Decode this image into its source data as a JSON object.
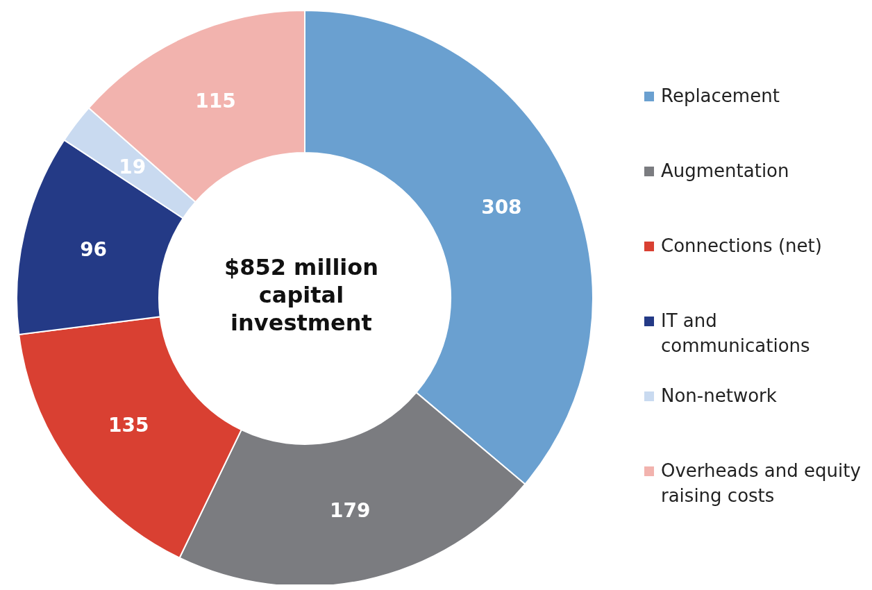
{
  "chart_data": {
    "type": "donut",
    "categories": [
      "Replacement",
      "Augmentation",
      "Connections (net)",
      "IT and communications",
      "Non-network",
      "Overheads and equity raising costs"
    ],
    "values": [
      308,
      179,
      135,
      96,
      19,
      115
    ],
    "colors": [
      "#6aa0d0",
      "#7b7c80",
      "#d94032",
      "#243a86",
      "#c9daf0",
      "#f2b3ae"
    ],
    "data_labels": true,
    "legend": "right",
    "annotations": [
      "$852 million capital investment"
    ]
  }
}
